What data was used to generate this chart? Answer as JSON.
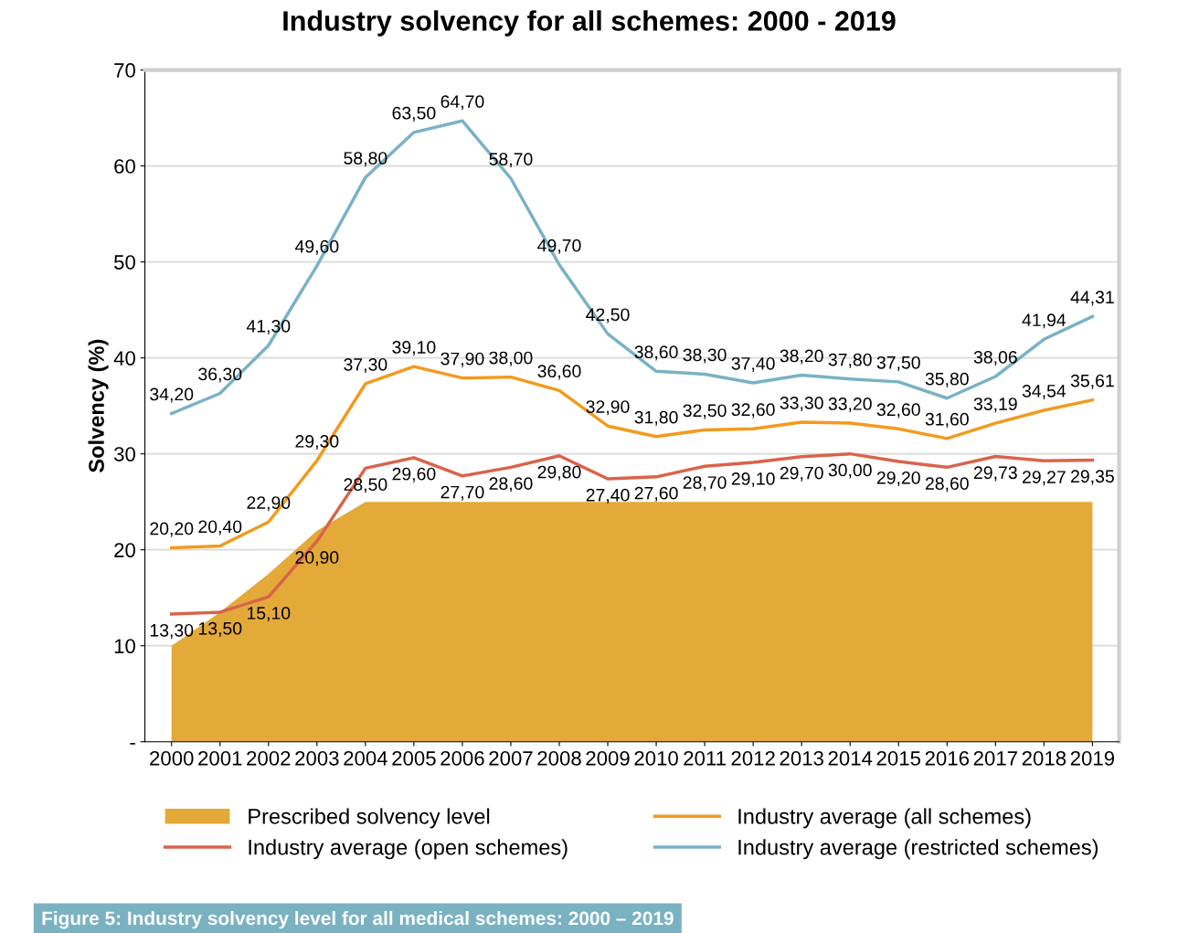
{
  "chart_data": {
    "type": "line",
    "title": "Industry solvency for all schemes: 2000 - 2019",
    "ylabel": "Solvency (%)",
    "categories": [
      "2000",
      "2001",
      "2002",
      "2003",
      "2004",
      "2005",
      "2006",
      "2007",
      "2008",
      "2009",
      "2010",
      "2011",
      "2012",
      "2013",
      "2014",
      "2015",
      "2016",
      "2017",
      "2018",
      "2019"
    ],
    "series": [
      {
        "name": "Prescribed solvency level",
        "type": "area",
        "color": "#e3aa3a",
        "values": [
          10,
          13.5,
          17.5,
          22,
          25,
          25,
          25,
          25,
          25,
          25,
          25,
          25,
          25,
          25,
          25,
          25,
          25,
          25,
          25,
          25
        ]
      },
      {
        "name": "Industry average (all schemes)",
        "color": "#f39a1e",
        "values": [
          20.2,
          20.4,
          22.9,
          29.3,
          37.3,
          39.1,
          37.9,
          38.0,
          36.6,
          32.9,
          31.8,
          32.5,
          32.6,
          33.3,
          33.2,
          32.6,
          31.6,
          33.19,
          34.54,
          35.61
        ],
        "value_labels": [
          "20,20",
          "20,40",
          "22,90",
          "29,30",
          "37,30",
          "39,10",
          "37,90",
          "38,00",
          "36,60",
          "32,90",
          "31,80",
          "32,50",
          "32,60",
          "33,30",
          "33,20",
          "32,60",
          "31,60",
          "33,19",
          "34,54",
          "35,61"
        ]
      },
      {
        "name": "Industry average (open schemes)",
        "color": "#d9634a",
        "values": [
          13.3,
          13.5,
          15.1,
          20.9,
          28.5,
          29.6,
          27.7,
          28.6,
          29.8,
          27.4,
          27.6,
          28.7,
          29.1,
          29.7,
          30.0,
          29.2,
          28.6,
          29.73,
          29.27,
          29.35
        ],
        "value_labels": [
          "13,30",
          "13,50",
          "15,10",
          "20,90",
          "28,50",
          "29,60",
          "27,70",
          "28,60",
          "29,80",
          "27,40",
          "27,60",
          "28,70",
          "29,10",
          "29,70",
          "30,00",
          "29,20",
          "28,60",
          "29,73",
          "29,27",
          "29,35"
        ]
      },
      {
        "name": "Industry average (restricted schemes)",
        "color": "#79b2c6",
        "values": [
          34.2,
          36.3,
          41.3,
          49.6,
          58.8,
          63.5,
          64.7,
          58.7,
          49.7,
          42.5,
          38.6,
          38.3,
          37.4,
          38.2,
          37.8,
          37.5,
          35.8,
          38.06,
          41.94,
          44.31
        ],
        "value_labels": [
          "34,20",
          "36,30",
          "41,30",
          "49,60",
          "58,80",
          "63,50",
          "64,70",
          "58,70",
          "49,70",
          "42,50",
          "38,60",
          "38,30",
          "37,40",
          "38,20",
          "37,80",
          "37,50",
          "35,80",
          "38,06",
          "41,94",
          "44,31"
        ]
      }
    ],
    "ylim": [
      0,
      70
    ],
    "yticks": [
      {
        "value": 0,
        "label": "-"
      },
      10,
      20,
      30,
      40,
      50,
      60,
      70
    ],
    "grid": "y",
    "legend": "bottom",
    "annotations": [
      "Figure 5: Industry solvency level for all medical schemes: 2000 – 2019"
    ]
  }
}
